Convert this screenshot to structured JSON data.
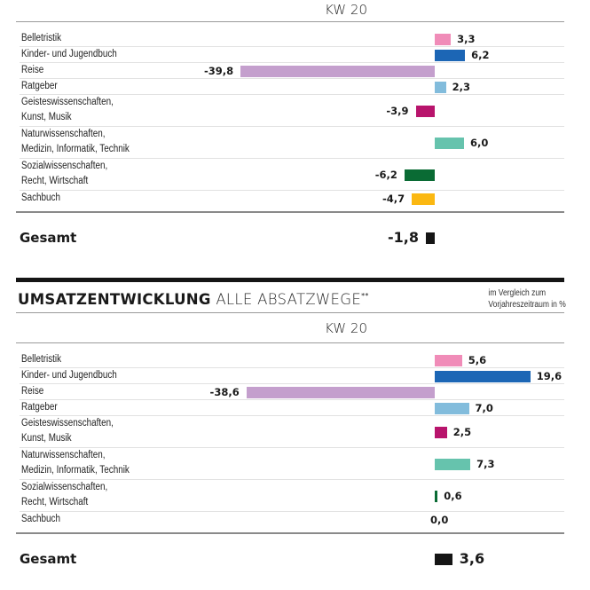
{
  "chart_data": [
    {
      "type": "bar",
      "orientation": "horizontal",
      "period_label": "KW 20",
      "categories": [
        "Belletristik",
        "Kinder- und Jugendbuch",
        "Reise",
        "Ratgeber",
        "Geisteswissenschaften, Kunst, Musik",
        "Naturwissenschaften, Medizin, Informatik, Technik",
        "Sozialwissenschaften, Recht, Wirtschaft",
        "Sachbuch"
      ],
      "category_lines": [
        [
          "Belletristik"
        ],
        [
          "Kinder- und Jugendbuch"
        ],
        [
          "Reise"
        ],
        [
          "Ratgeber"
        ],
        [
          "Geisteswissenschaften,",
          "Kunst, Musik"
        ],
        [
          "Naturwissenschaften,",
          "Medizin, Informatik, Technik"
        ],
        [
          "Sozialwissenschaften,",
          "Recht, Wirtschaft"
        ],
        [
          "Sachbuch"
        ]
      ],
      "values": [
        3.3,
        6.2,
        -39.8,
        2.3,
        -3.9,
        6.0,
        -6.2,
        -4.7
      ],
      "value_labels": [
        "3,3",
        "6,2",
        "-39,8",
        "2,3",
        "-3,9",
        "6,0",
        "-6,2",
        "-4,7"
      ],
      "colors": [
        "#f08cb8",
        "#1c66b5",
        "#c49fcd",
        "#82bcdc",
        "#b8146c",
        "#66c3ad",
        "#0a6b34",
        "#fbb812"
      ],
      "total": {
        "label": "Gesamt",
        "value": -1.8,
        "value_label": "-1,8",
        "color": "#151515"
      }
    },
    {
      "type": "bar",
      "orientation": "horizontal",
      "title_bold": "UMSATZENTWICKLUNG",
      "title_light": "ALLE ABSATZWEGE",
      "title_footnote": "**",
      "note_lines": [
        "im Vergleich zum",
        "Vorjahreszeitraum in %"
      ],
      "period_label": "KW 20",
      "categories": [
        "Belletristik",
        "Kinder- und Jugendbuch",
        "Reise",
        "Ratgeber",
        "Geisteswissenschaften, Kunst, Musik",
        "Naturwissenschaften, Medizin, Informatik, Technik",
        "Sozialwissenschaften, Recht, Wirtschaft",
        "Sachbuch"
      ],
      "category_lines": [
        [
          "Belletristik"
        ],
        [
          "Kinder- und Jugendbuch"
        ],
        [
          "Reise"
        ],
        [
          "Ratgeber"
        ],
        [
          "Geisteswissenschaften,",
          "Kunst, Musik"
        ],
        [
          "Naturwissenschaften,",
          "Medizin, Informatik, Technik"
        ],
        [
          "Sozialwissenschaften,",
          "Recht, Wirtschaft"
        ],
        [
          "Sachbuch"
        ]
      ],
      "values": [
        5.6,
        19.6,
        -38.6,
        7.0,
        2.5,
        7.3,
        0.6,
        0.0
      ],
      "value_labels": [
        "5,6",
        "19,6",
        "-38,6",
        "7,0",
        "2,5",
        "7,3",
        "0,6",
        "0,0"
      ],
      "colors": [
        "#f08cb8",
        "#1c66b5",
        "#c49fcd",
        "#82bcdc",
        "#b8146c",
        "#66c3ad",
        "#0a6b34",
        "#fbb812"
      ],
      "total": {
        "label": "Gesamt",
        "value": 3.6,
        "value_label": "3,6",
        "color": "#151515"
      }
    }
  ]
}
